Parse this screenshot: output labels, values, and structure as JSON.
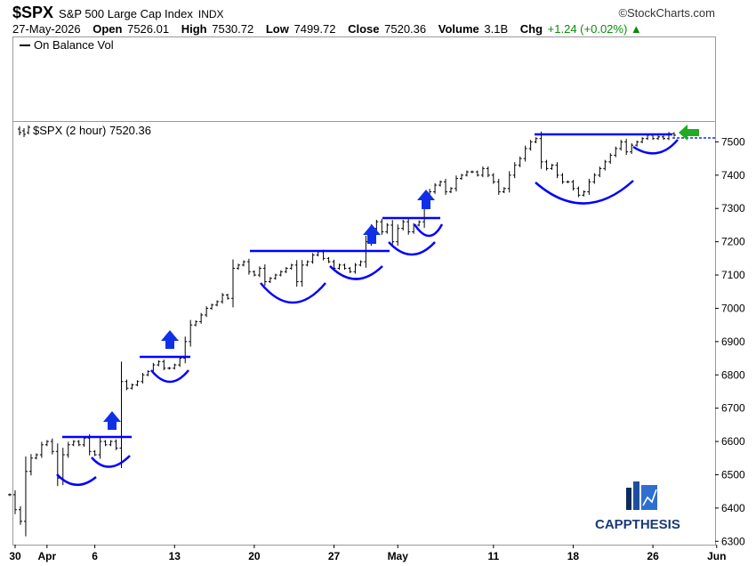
{
  "header": {
    "symbol": "$SPX",
    "name": "S&P 500 Large Cap Index",
    "exchange": "INDX",
    "brand": "©StockCharts.com",
    "date": "27-May-2026",
    "open_label": "Open",
    "open": "7526.01",
    "high_label": "High",
    "high": "7530.72",
    "low_label": "Low",
    "low": "7499.72",
    "close_label": "Close",
    "close": "7520.36",
    "volume_label": "Volume",
    "volume": "3.1B",
    "chg_label": "Chg",
    "chg": "+1.24 (+0.02%)"
  },
  "obv_panel": {
    "label": "On Balance Vol"
  },
  "price_panel": {
    "label": "$SPX (2 hour) 7520.36"
  },
  "logo": {
    "text": "CAPPTHESIS"
  },
  "colors": {
    "bars": "#000000",
    "annotation": "#0000ff",
    "current_arrow": "#22aa22",
    "chg_up": "#0a8a0a"
  },
  "chart_data": {
    "type": "ohlc",
    "interval": "2 hour",
    "ylim": [
      6290,
      7560
    ],
    "y_ticks": [
      6300,
      6400,
      6500,
      6600,
      6700,
      6800,
      6900,
      7000,
      7100,
      7200,
      7300,
      7400,
      7500
    ],
    "x_ticks": [
      "30",
      "Apr",
      "6",
      "13",
      "20",
      "27",
      "May",
      "11",
      "18",
      "26",
      "Jun"
    ],
    "grid": false,
    "sessions": [
      {
        "date": "Mar 30",
        "close": [
          6440,
          6395,
          6360
        ]
      },
      {
        "date": "Mar 31",
        "close": [
          6510,
          6550,
          6560
        ]
      },
      {
        "date": "Apr 1",
        "close": [
          6590,
          6600,
          6570
        ]
      },
      {
        "date": "Apr 2",
        "close": [
          6490,
          6560,
          6590
        ]
      },
      {
        "date": "Apr 3",
        "close": [
          6600,
          6590,
          6610
        ]
      },
      {
        "date": "Apr 6",
        "close": [
          6570,
          6560,
          6600
        ]
      },
      {
        "date": "Apr 7",
        "close": [
          6590,
          6600,
          6580
        ]
      },
      {
        "date": "Apr 8",
        "close": [
          6780,
          6760,
          6770
        ]
      },
      {
        "date": "Apr 9",
        "close": [
          6780,
          6800,
          6810
        ]
      },
      {
        "date": "Apr 10",
        "close": [
          6830,
          6840,
          6820
        ]
      },
      {
        "date": "Apr 13",
        "close": [
          6820,
          6830,
          6850
        ]
      },
      {
        "date": "Apr 14",
        "close": [
          6900,
          6950,
          6960
        ]
      },
      {
        "date": "Apr 15",
        "close": [
          6980,
          7000,
          7010
        ]
      },
      {
        "date": "Apr 16",
        "close": [
          7020,
          7040,
          7030
        ]
      },
      {
        "date": "Apr 17",
        "close": [
          7120,
          7130,
          7140
        ]
      },
      {
        "date": "Apr 20",
        "close": [
          7110,
          7100,
          7120
        ]
      },
      {
        "date": "Apr 21",
        "close": [
          7080,
          7090,
          7100
        ]
      },
      {
        "date": "Apr 22",
        "close": [
          7110,
          7120,
          7130
        ]
      },
      {
        "date": "Apr 23",
        "close": [
          7080,
          7130,
          7140
        ]
      },
      {
        "date": "Apr 24",
        "close": [
          7160,
          7170,
          7150
        ]
      },
      {
        "date": "Apr 27",
        "close": [
          7140,
          7120,
          7130
        ]
      },
      {
        "date": "Apr 28",
        "close": [
          7120,
          7110,
          7130
        ]
      },
      {
        "date": "Apr 29",
        "close": [
          7140,
          7200,
          7240
        ]
      },
      {
        "date": "Apr 30",
        "close": [
          7260,
          7230,
          7250
        ]
      },
      {
        "date": "May 1",
        "close": [
          7200,
          7240,
          7260
        ]
      },
      {
        "date": "May 4",
        "close": [
          7230,
          7250,
          7260
        ]
      },
      {
        "date": "May 5",
        "close": [
          7320,
          7350,
          7370
        ]
      },
      {
        "date": "May 6",
        "close": [
          7380,
          7350,
          7360
        ]
      },
      {
        "date": "May 7",
        "close": [
          7390,
          7400,
          7410
        ]
      },
      {
        "date": "May 8",
        "close": [
          7410,
          7400,
          7420
        ]
      },
      {
        "date": "May 11",
        "close": [
          7400,
          7380,
          7350
        ]
      },
      {
        "date": "May 12",
        "close": [
          7360,
          7400,
          7430
        ]
      },
      {
        "date": "May 13",
        "close": [
          7450,
          7480,
          7500
        ]
      },
      {
        "date": "May 14",
        "close": [
          7510,
          7440,
          7420
        ]
      },
      {
        "date": "May 15",
        "close": [
          7430,
          7400,
          7380
        ]
      },
      {
        "date": "May 18",
        "close": [
          7380,
          7360,
          7340
        ]
      },
      {
        "date": "May 19",
        "close": [
          7350,
          7380,
          7400
        ]
      },
      {
        "date": "May 20",
        "close": [
          7420,
          7440,
          7460
        ]
      },
      {
        "date": "May 21",
        "close": [
          7480,
          7500,
          7470
        ]
      },
      {
        "date": "May 22",
        "close": [
          7490,
          7500,
          7510
        ]
      },
      {
        "date": "May 26",
        "close": [
          7520,
          7510,
          7515
        ]
      },
      {
        "date": "May 27",
        "close": [
          7510,
          7525,
          7520
        ]
      }
    ]
  }
}
